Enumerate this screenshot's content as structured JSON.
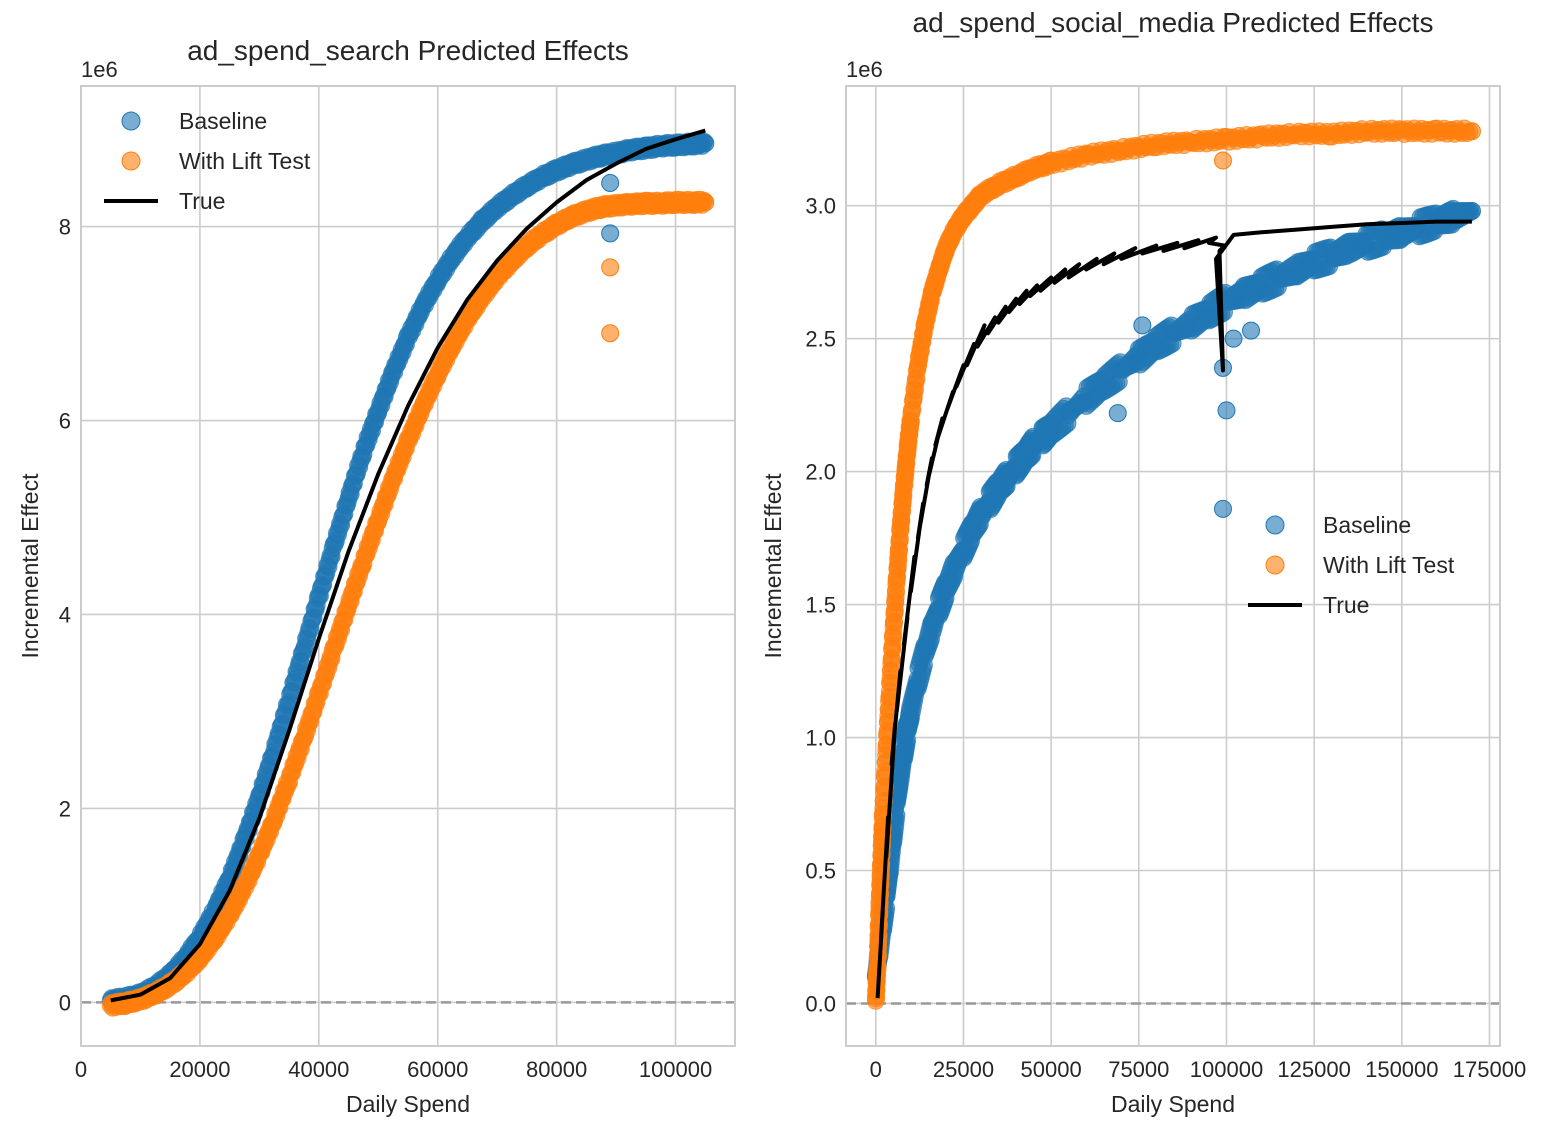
{
  "colors": {
    "baseline": "#1f77b4",
    "lift": "#ff7f0e",
    "true": "#000000",
    "grid": "#cccccc",
    "zero_line": "#999999",
    "frame": "#cccccc"
  },
  "chart_data": [
    {
      "type": "scatter",
      "title": "ad_spend_search Predicted Effects",
      "xlabel": "Daily Spend",
      "ylabel": "Incremental Effect",
      "y_offset_text": "1e6",
      "xlim": [
        0,
        110000
      ],
      "ylim": [
        -0.45,
        9.45
      ],
      "y_scale_note": "y values in millions (1e6)",
      "x_ticks": [
        0,
        20000,
        40000,
        60000,
        80000,
        100000
      ],
      "x_tick_labels": [
        "0",
        "20000",
        "40000",
        "60000",
        "80000",
        "100000"
      ],
      "y_ticks": [
        0,
        2,
        4,
        6,
        8
      ],
      "y_tick_labels": [
        "0",
        "2",
        "4",
        "6",
        "8"
      ],
      "legend_position": "upper-left",
      "legend": [
        "Baseline",
        "With Lift Test",
        "True"
      ],
      "grid": true,
      "zero_line": "dashed",
      "series": [
        {
          "name": "Baseline",
          "kind": "scatter",
          "color_key": "baseline",
          "x": [
            5000,
            7500,
            10000,
            12500,
            15000,
            17500,
            20000,
            22500,
            25000,
            27500,
            30000,
            32500,
            35000,
            37500,
            40000,
            42500,
            45000,
            47500,
            50000,
            52500,
            55000,
            57500,
            60000,
            62500,
            65000,
            67500,
            70000,
            72500,
            75000,
            77500,
            80000,
            82500,
            85000,
            87500,
            90000,
            92500,
            95000,
            97500,
            100000,
            102500,
            105000
          ],
          "y": [
            0.02,
            0.04,
            0.08,
            0.16,
            0.28,
            0.45,
            0.67,
            0.95,
            1.28,
            1.68,
            2.12,
            2.6,
            3.12,
            3.65,
            4.18,
            4.7,
            5.2,
            5.68,
            6.1,
            6.5,
            6.86,
            7.18,
            7.45,
            7.69,
            7.89,
            8.06,
            8.2,
            8.32,
            8.42,
            8.51,
            8.58,
            8.64,
            8.69,
            8.73,
            8.76,
            8.79,
            8.81,
            8.83,
            8.84,
            8.85,
            8.86
          ],
          "outliers": [
            {
              "x": 89000,
              "y": 7.93
            },
            {
              "x": 89000,
              "y": 8.45
            }
          ]
        },
        {
          "name": "With Lift Test",
          "kind": "scatter",
          "color_key": "lift",
          "x": [
            5000,
            7500,
            10000,
            12500,
            15000,
            17500,
            20000,
            22500,
            25000,
            27500,
            30000,
            32500,
            35000,
            37500,
            40000,
            42500,
            45000,
            47500,
            50000,
            52500,
            55000,
            57500,
            60000,
            62500,
            65000,
            67500,
            70000,
            72500,
            75000,
            77500,
            80000,
            82500,
            85000,
            87500,
            90000,
            92500,
            95000,
            97500,
            100000,
            102500,
            105000
          ],
          "y": [
            -0.03,
            -0.01,
            0.03,
            0.09,
            0.18,
            0.3,
            0.46,
            0.66,
            0.9,
            1.19,
            1.52,
            1.89,
            2.3,
            2.73,
            3.18,
            3.64,
            4.1,
            4.55,
            4.98,
            5.4,
            5.79,
            6.15,
            6.48,
            6.78,
            7.05,
            7.28,
            7.48,
            7.65,
            7.8,
            7.92,
            8.02,
            8.1,
            8.16,
            8.2,
            8.22,
            8.23,
            8.24,
            8.24,
            8.25,
            8.25,
            8.25
          ],
          "outliers": [
            {
              "x": 89000,
              "y": 6.9
            },
            {
              "x": 89000,
              "y": 7.58
            }
          ]
        },
        {
          "name": "True",
          "kind": "line",
          "color_key": "true",
          "x": [
            5000,
            10000,
            15000,
            20000,
            25000,
            30000,
            35000,
            40000,
            45000,
            50000,
            55000,
            60000,
            65000,
            70000,
            75000,
            80000,
            85000,
            90000,
            95000,
            100000,
            105000
          ],
          "y": [
            0.02,
            0.08,
            0.25,
            0.6,
            1.15,
            1.9,
            2.8,
            3.75,
            4.65,
            5.45,
            6.15,
            6.75,
            7.25,
            7.65,
            7.98,
            8.25,
            8.48,
            8.65,
            8.8,
            8.9,
            8.99
          ]
        }
      ]
    },
    {
      "type": "scatter",
      "title": "ad_spend_social_media Predicted Effects",
      "xlabel": "Daily Spend",
      "ylabel": "Incremental Effect",
      "y_offset_text": "1e6",
      "xlim": [
        -8500,
        178000
      ],
      "ylim": [
        -0.16,
        3.45
      ],
      "y_scale_note": "y values in millions (1e6)",
      "x_ticks": [
        0,
        25000,
        50000,
        75000,
        100000,
        125000,
        150000,
        175000
      ],
      "x_tick_labels": [
        "0",
        "25000",
        "50000",
        "75000",
        "100000",
        "125000",
        "150000",
        "175000"
      ],
      "y_ticks": [
        0.0,
        0.5,
        1.0,
        1.5,
        2.0,
        2.5,
        3.0
      ],
      "y_tick_labels": [
        "0.0",
        "0.5",
        "1.0",
        "1.5",
        "2.0",
        "2.5",
        "3.0"
      ],
      "legend_position": "center-right",
      "legend": [
        "Baseline",
        "With Lift Test",
        "True"
      ],
      "grid": true,
      "zero_line": "dashed",
      "series": [
        {
          "name": "Baseline",
          "kind": "scatter",
          "color_key": "baseline",
          "x": [
            0,
            1000,
            2000,
            3000,
            4000,
            5000,
            6000,
            7000,
            8000,
            9000,
            10000,
            12000,
            14000,
            16000,
            18000,
            20000,
            22500,
            25000,
            27500,
            30000,
            32500,
            35000,
            37500,
            40000,
            42500,
            45000,
            47500,
            50000,
            55000,
            60000,
            65000,
            70000,
            75000,
            80000,
            85000,
            90000,
            95000,
            100000,
            105000,
            110000,
            115000,
            120000,
            125000,
            130000,
            135000,
            140000,
            145000,
            150000,
            155000,
            160000,
            165000,
            170000
          ],
          "y": [
            0.1,
            0.2,
            0.3,
            0.4,
            0.52,
            0.64,
            0.76,
            0.86,
            0.95,
            1.03,
            1.1,
            1.22,
            1.32,
            1.41,
            1.49,
            1.56,
            1.64,
            1.71,
            1.78,
            1.84,
            1.89,
            1.94,
            1.98,
            2.02,
            2.06,
            2.1,
            2.13,
            2.16,
            2.22,
            2.28,
            2.33,
            2.38,
            2.43,
            2.48,
            2.52,
            2.56,
            2.6,
            2.64,
            2.67,
            2.7,
            2.73,
            2.76,
            2.79,
            2.81,
            2.84,
            2.86,
            2.88,
            2.9,
            2.92,
            2.94,
            2.96,
            2.98
          ],
          "outliers": [
            {
              "x": 99000,
              "y": 1.86
            },
            {
              "x": 99000,
              "y": 2.39
            },
            {
              "x": 100000,
              "y": 2.23
            },
            {
              "x": 102000,
              "y": 2.5
            },
            {
              "x": 107000,
              "y": 2.53
            },
            {
              "x": 69000,
              "y": 2.22
            },
            {
              "x": 76000,
              "y": 2.55
            }
          ]
        },
        {
          "name": "With Lift Test",
          "kind": "scatter",
          "color_key": "lift",
          "x": [
            0,
            500,
            1000,
            1500,
            2000,
            3000,
            4000,
            5000,
            6000,
            7000,
            8000,
            9000,
            10000,
            12000,
            14000,
            16000,
            18000,
            20000,
            22500,
            25000,
            27500,
            30000,
            35000,
            40000,
            45000,
            50000,
            60000,
            70000,
            80000,
            90000,
            100000,
            110000,
            120000,
            130000,
            140000,
            150000,
            160000,
            170000
          ],
          "y": [
            0.01,
            0.15,
            0.35,
            0.52,
            0.7,
            0.95,
            1.18,
            1.4,
            1.6,
            1.78,
            1.94,
            2.08,
            2.2,
            2.4,
            2.55,
            2.67,
            2.76,
            2.84,
            2.91,
            2.96,
            3.0,
            3.04,
            3.08,
            3.11,
            3.14,
            3.16,
            3.19,
            3.21,
            3.23,
            3.24,
            3.25,
            3.26,
            3.27,
            3.27,
            3.28,
            3.28,
            3.28,
            3.28
          ],
          "outliers": [
            {
              "x": 99000,
              "y": 3.17
            }
          ]
        },
        {
          "name": "True",
          "kind": "line",
          "color_key": "true",
          "x": [
            500,
            2000,
            1500,
            3500,
            3000,
            5500,
            4500,
            7000,
            6000,
            9000,
            8000,
            11000,
            10000,
            13500,
            12000,
            16000,
            14500,
            19000,
            17000,
            22000,
            20000,
            25000,
            23000,
            28000,
            26000,
            31000,
            29000,
            34000,
            32000,
            37000,
            35000,
            40000,
            38000,
            43000,
            41000,
            46000,
            44000,
            50000,
            47000,
            54000,
            51000,
            58000,
            55000,
            63000,
            60000,
            68000,
            65000,
            74000,
            70000,
            80000,
            76000,
            86000,
            82000,
            92000,
            88000,
            97000,
            95000,
            99500,
            98000,
            99000,
            97000,
            102000,
            110000,
            120000,
            130000,
            140000,
            150000,
            160000,
            170000
          ],
          "y": [
            0.02,
            0.35,
            0.25,
            0.7,
            0.55,
            1.05,
            0.9,
            1.25,
            1.1,
            1.45,
            1.35,
            1.68,
            1.55,
            1.88,
            1.75,
            2.05,
            1.95,
            2.2,
            2.1,
            2.3,
            2.22,
            2.4,
            2.32,
            2.48,
            2.4,
            2.55,
            2.47,
            2.58,
            2.52,
            2.62,
            2.56,
            2.65,
            2.6,
            2.68,
            2.63,
            2.7,
            2.66,
            2.73,
            2.68,
            2.76,
            2.71,
            2.78,
            2.73,
            2.8,
            2.76,
            2.82,
            2.78,
            2.84,
            2.8,
            2.85,
            2.82,
            2.86,
            2.83,
            2.87,
            2.84,
            2.88,
            2.86,
            2.85,
            2.83,
            2.38,
            2.8,
            2.89,
            2.9,
            2.91,
            2.92,
            2.93,
            2.935,
            2.94,
            2.94
          ]
        }
      ]
    }
  ]
}
